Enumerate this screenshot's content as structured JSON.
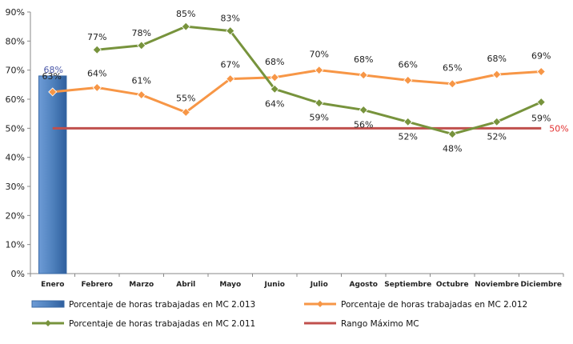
{
  "chart_data": {
    "type": "line",
    "categories": [
      "Enero",
      "Febrero",
      "Marzo",
      "Abril",
      "Mayo",
      "Junio",
      "Julio",
      "Agosto",
      "Septiembre",
      "Octubre",
      "Noviembre",
      "Diciembre"
    ],
    "ylim": [
      0,
      90
    ],
    "yticks": [
      "0%",
      "10%",
      "20%",
      "30%",
      "40%",
      "50%",
      "60%",
      "70%",
      "80%",
      "90%"
    ],
    "grid": false,
    "legend_position": "bottom",
    "colors": {
      "bar": "#4f81bd",
      "series2012": "#f79646",
      "series2011": "#77933c",
      "reference": "#c0504d"
    },
    "series": [
      {
        "key": "mc2013",
        "kind": "bar",
        "name": "Porcentaje de horas trabajadas en MC 2.013",
        "values": [
          68,
          null,
          null,
          null,
          null,
          null,
          null,
          null,
          null,
          null,
          null,
          null
        ],
        "labels": [
          "68%"
        ]
      },
      {
        "key": "mc2012",
        "kind": "line",
        "name": "Porcentaje de horas trabajadas en MC 2.012",
        "values": [
          62.5,
          64,
          61.5,
          55.5,
          67,
          67.5,
          70,
          68.3,
          66.5,
          65.3,
          68.5,
          69.5
        ],
        "labels": [
          "63%",
          "64%",
          "61%",
          "55%",
          "67%",
          "68%",
          "70%",
          "68%",
          "66%",
          "65%",
          "68%",
          "69%"
        ]
      },
      {
        "key": "mc2011",
        "kind": "line",
        "name": "Porcentaje de horas trabajadas en MC 2.011",
        "values": [
          null,
          77,
          78.5,
          85,
          83.5,
          63.5,
          58.7,
          56.3,
          52.2,
          48,
          52.2,
          59
        ],
        "labels": [
          "",
          "77%",
          "78%",
          "85%",
          "83%",
          "64%",
          "59%",
          "56%",
          "52%",
          "48%",
          "52%",
          "59%"
        ]
      },
      {
        "key": "rango",
        "kind": "reference",
        "name": "Rango Máximo MC",
        "value": 50,
        "label": "50%"
      }
    ]
  }
}
